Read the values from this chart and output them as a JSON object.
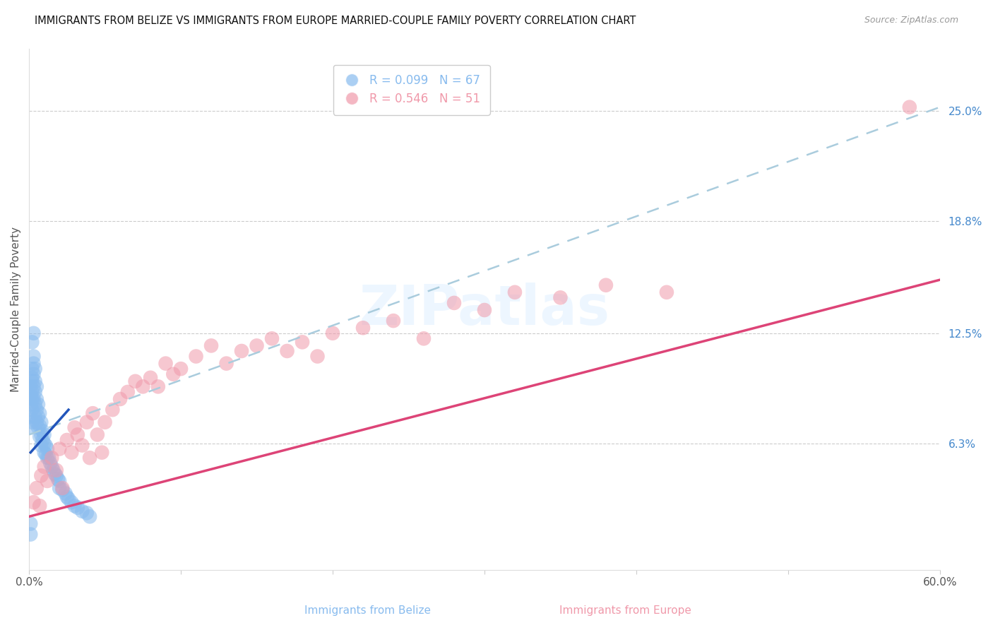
{
  "title": "IMMIGRANTS FROM BELIZE VS IMMIGRANTS FROM EUROPE MARRIED-COUPLE FAMILY POVERTY CORRELATION CHART",
  "source": "Source: ZipAtlas.com",
  "ylabel": "Married-Couple Family Poverty",
  "xmin": 0.0,
  "xmax": 0.6,
  "ymin": -0.008,
  "ymax": 0.285,
  "belize_color": "#88bbee",
  "europe_color": "#f099aa",
  "belize_line_color": "#2255bb",
  "europe_line_color": "#dd4477",
  "belize_dash_color": "#aaccdd",
  "watermark_text": "ZIPatlas",
  "R_belize": "0.099",
  "N_belize": "67",
  "R_europe": "0.546",
  "N_europe": "51",
  "legend_label_belize": "R = 0.099   N = 67",
  "legend_label_europe": "R = 0.546   N = 51",
  "bottom_label_belize": "Immigrants from Belize",
  "bottom_label_europe": "Immigrants from Europe",
  "ytick_values": [
    0.0,
    0.063,
    0.125,
    0.188,
    0.25
  ],
  "ytick_labels": [
    "",
    "6.3%",
    "12.5%",
    "18.8%",
    "25.0%"
  ],
  "xtick_values": [
    0.0,
    0.1,
    0.2,
    0.3,
    0.4,
    0.5,
    0.6
  ],
  "xtick_labels": [
    "0.0%",
    "",
    "",
    "",
    "",
    "",
    "60.0%"
  ],
  "belize_dash_line_x": [
    0.0,
    0.6
  ],
  "belize_dash_line_y": [
    0.068,
    0.252
  ],
  "europe_solid_line_x": [
    0.0,
    0.6
  ],
  "europe_solid_line_y": [
    0.022,
    0.155
  ],
  "belize_solid_line_x": [
    0.001,
    0.026
  ],
  "belize_solid_line_y": [
    0.058,
    0.082
  ],
  "belize_x": [
    0.001,
    0.001,
    0.001,
    0.001,
    0.001,
    0.002,
    0.002,
    0.002,
    0.002,
    0.002,
    0.002,
    0.002,
    0.003,
    0.003,
    0.003,
    0.003,
    0.003,
    0.004,
    0.004,
    0.004,
    0.004,
    0.004,
    0.005,
    0.005,
    0.005,
    0.005,
    0.006,
    0.006,
    0.006,
    0.007,
    0.007,
    0.007,
    0.008,
    0.008,
    0.008,
    0.009,
    0.009,
    0.01,
    0.01,
    0.01,
    0.011,
    0.011,
    0.012,
    0.012,
    0.013,
    0.014,
    0.015,
    0.016,
    0.017,
    0.018,
    0.019,
    0.02,
    0.02,
    0.022,
    0.024,
    0.025,
    0.026,
    0.028,
    0.03,
    0.032,
    0.035,
    0.038,
    0.04,
    0.002,
    0.003,
    0.001,
    0.001
  ],
  "belize_y": [
    0.095,
    0.085,
    0.09,
    0.078,
    0.072,
    0.105,
    0.1,
    0.098,
    0.092,
    0.088,
    0.082,
    0.075,
    0.112,
    0.108,
    0.102,
    0.095,
    0.088,
    0.105,
    0.098,
    0.092,
    0.085,
    0.078,
    0.095,
    0.088,
    0.082,
    0.075,
    0.085,
    0.078,
    0.072,
    0.08,
    0.073,
    0.067,
    0.075,
    0.068,
    0.062,
    0.07,
    0.065,
    0.068,
    0.063,
    0.058,
    0.062,
    0.057,
    0.06,
    0.055,
    0.055,
    0.052,
    0.05,
    0.048,
    0.046,
    0.045,
    0.043,
    0.042,
    0.038,
    0.037,
    0.035,
    0.033,
    0.032,
    0.03,
    0.028,
    0.027,
    0.025,
    0.024,
    0.022,
    0.12,
    0.125,
    0.018,
    0.012
  ],
  "europe_x": [
    0.003,
    0.005,
    0.007,
    0.008,
    0.01,
    0.012,
    0.015,
    0.018,
    0.02,
    0.022,
    0.025,
    0.028,
    0.03,
    0.032,
    0.035,
    0.038,
    0.04,
    0.042,
    0.045,
    0.048,
    0.05,
    0.055,
    0.06,
    0.065,
    0.07,
    0.075,
    0.08,
    0.085,
    0.09,
    0.095,
    0.1,
    0.11,
    0.12,
    0.13,
    0.14,
    0.15,
    0.16,
    0.17,
    0.18,
    0.19,
    0.2,
    0.22,
    0.24,
    0.26,
    0.28,
    0.3,
    0.32,
    0.35,
    0.38,
    0.42,
    0.58
  ],
  "europe_y": [
    0.03,
    0.038,
    0.028,
    0.045,
    0.05,
    0.042,
    0.055,
    0.048,
    0.06,
    0.038,
    0.065,
    0.058,
    0.072,
    0.068,
    0.062,
    0.075,
    0.055,
    0.08,
    0.068,
    0.058,
    0.075,
    0.082,
    0.088,
    0.092,
    0.098,
    0.095,
    0.1,
    0.095,
    0.108,
    0.102,
    0.105,
    0.112,
    0.118,
    0.108,
    0.115,
    0.118,
    0.122,
    0.115,
    0.12,
    0.112,
    0.125,
    0.128,
    0.132,
    0.122,
    0.142,
    0.138,
    0.148,
    0.145,
    0.152,
    0.148,
    0.252
  ]
}
